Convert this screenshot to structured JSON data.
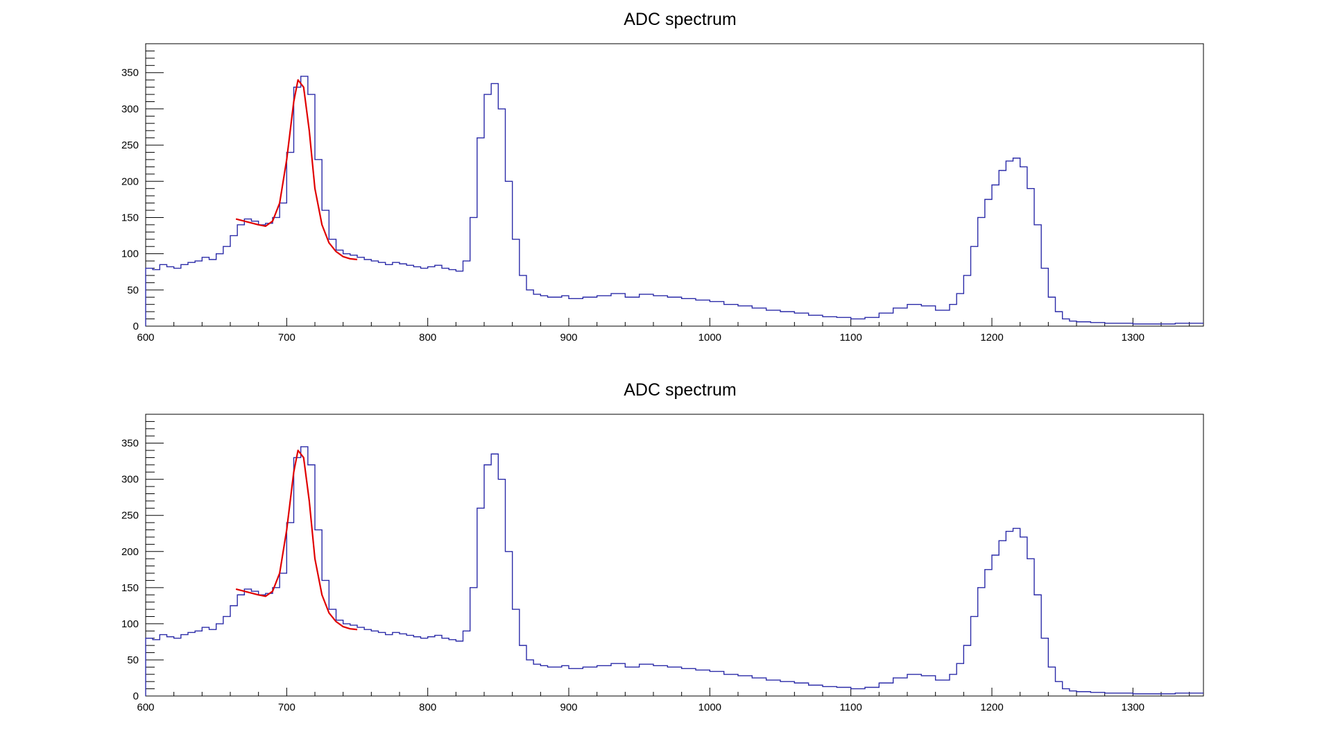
{
  "chart_data": [
    {
      "type": "histogram",
      "title": "ADC spectrum",
      "xlim": [
        600,
        1350
      ],
      "ylim": [
        0,
        390
      ],
      "x_ticks": [
        600,
        700,
        800,
        900,
        1000,
        1100,
        1200,
        1300
      ],
      "y_ticks": [
        0,
        50,
        100,
        150,
        200,
        250,
        300,
        350
      ],
      "series_color": "#2b2ba8",
      "fit_color": "#e00000",
      "histogram_x": [
        600,
        605,
        610,
        615,
        620,
        625,
        630,
        635,
        640,
        645,
        650,
        655,
        660,
        665,
        670,
        675,
        680,
        685,
        690,
        695,
        700,
        705,
        710,
        715,
        720,
        725,
        730,
        735,
        740,
        745,
        750,
        755,
        760,
        765,
        770,
        775,
        780,
        785,
        790,
        795,
        800,
        805,
        810,
        815,
        820,
        825,
        830,
        835,
        840,
        845,
        850,
        855,
        860,
        865,
        870,
        875,
        880,
        885,
        890,
        895,
        900,
        910,
        920,
        930,
        940,
        950,
        960,
        970,
        980,
        990,
        1000,
        1010,
        1020,
        1030,
        1040,
        1050,
        1060,
        1070,
        1080,
        1090,
        1100,
        1110,
        1120,
        1130,
        1140,
        1150,
        1160,
        1170,
        1175,
        1180,
        1185,
        1190,
        1195,
        1200,
        1205,
        1210,
        1215,
        1220,
        1225,
        1230,
        1235,
        1240,
        1245,
        1250,
        1255,
        1260,
        1270,
        1280,
        1290,
        1300,
        1310,
        1320,
        1330,
        1340,
        1350
      ],
      "histogram_y": [
        80,
        78,
        85,
        82,
        80,
        85,
        88,
        90,
        95,
        92,
        100,
        110,
        125,
        140,
        148,
        145,
        140,
        142,
        150,
        170,
        240,
        330,
        345,
        320,
        230,
        160,
        120,
        105,
        100,
        98,
        95,
        92,
        90,
        88,
        85,
        88,
        86,
        84,
        82,
        80,
        82,
        84,
        80,
        78,
        76,
        90,
        150,
        260,
        320,
        335,
        300,
        200,
        120,
        70,
        50,
        44,
        42,
        40,
        40,
        42,
        38,
        40,
        42,
        45,
        40,
        44,
        42,
        40,
        38,
        36,
        34,
        30,
        28,
        25,
        22,
        20,
        18,
        15,
        13,
        12,
        10,
        12,
        18,
        25,
        30,
        28,
        22,
        30,
        45,
        70,
        110,
        150,
        175,
        195,
        215,
        228,
        232,
        220,
        190,
        140,
        80,
        40,
        20,
        10,
        7,
        6,
        5,
        4,
        4,
        3,
        3,
        3,
        4,
        4,
        5
      ],
      "fit_x": [
        664,
        670,
        680,
        685,
        690,
        695,
        700,
        705,
        708,
        712,
        716,
        720,
        725,
        730,
        735,
        740,
        745,
        750
      ],
      "fit_y": [
        148,
        145,
        140,
        138,
        145,
        170,
        230,
        310,
        340,
        330,
        270,
        190,
        140,
        115,
        103,
        96,
        93,
        92
      ]
    },
    {
      "type": "histogram",
      "title": "ADC spectrum",
      "xlim": [
        600,
        1350
      ],
      "ylim": [
        0,
        390
      ],
      "x_ticks": [
        600,
        700,
        800,
        900,
        1000,
        1100,
        1200,
        1300
      ],
      "y_ticks": [
        0,
        50,
        100,
        150,
        200,
        250,
        300,
        350
      ],
      "series_color": "#2b2ba8",
      "fit_color": "#e00000",
      "histogram_x": [
        600,
        605,
        610,
        615,
        620,
        625,
        630,
        635,
        640,
        645,
        650,
        655,
        660,
        665,
        670,
        675,
        680,
        685,
        690,
        695,
        700,
        705,
        710,
        715,
        720,
        725,
        730,
        735,
        740,
        745,
        750,
        755,
        760,
        765,
        770,
        775,
        780,
        785,
        790,
        795,
        800,
        805,
        810,
        815,
        820,
        825,
        830,
        835,
        840,
        845,
        850,
        855,
        860,
        865,
        870,
        875,
        880,
        885,
        890,
        895,
        900,
        910,
        920,
        930,
        940,
        950,
        960,
        970,
        980,
        990,
        1000,
        1010,
        1020,
        1030,
        1040,
        1050,
        1060,
        1070,
        1080,
        1090,
        1100,
        1110,
        1120,
        1130,
        1140,
        1150,
        1160,
        1170,
        1175,
        1180,
        1185,
        1190,
        1195,
        1200,
        1205,
        1210,
        1215,
        1220,
        1225,
        1230,
        1235,
        1240,
        1245,
        1250,
        1255,
        1260,
        1270,
        1280,
        1290,
        1300,
        1310,
        1320,
        1330,
        1340,
        1350
      ],
      "histogram_y": [
        80,
        78,
        85,
        82,
        80,
        85,
        88,
        90,
        95,
        92,
        100,
        110,
        125,
        140,
        148,
        145,
        140,
        142,
        150,
        170,
        240,
        330,
        345,
        320,
        230,
        160,
        120,
        105,
        100,
        98,
        95,
        92,
        90,
        88,
        85,
        88,
        86,
        84,
        82,
        80,
        82,
        84,
        80,
        78,
        76,
        90,
        150,
        260,
        320,
        335,
        300,
        200,
        120,
        70,
        50,
        44,
        42,
        40,
        40,
        42,
        38,
        40,
        42,
        45,
        40,
        44,
        42,
        40,
        38,
        36,
        34,
        30,
        28,
        25,
        22,
        20,
        18,
        15,
        13,
        12,
        10,
        12,
        18,
        25,
        30,
        28,
        22,
        30,
        45,
        70,
        110,
        150,
        175,
        195,
        215,
        228,
        232,
        220,
        190,
        140,
        80,
        40,
        20,
        10,
        7,
        6,
        5,
        4,
        4,
        3,
        3,
        3,
        4,
        4,
        5
      ],
      "fit_x": [
        664,
        670,
        680,
        685,
        690,
        695,
        700,
        705,
        708,
        712,
        716,
        720,
        725,
        730,
        735,
        740,
        745,
        750
      ],
      "fit_y": [
        148,
        145,
        140,
        138,
        145,
        170,
        230,
        310,
        340,
        330,
        270,
        190,
        140,
        115,
        103,
        96,
        93,
        92
      ]
    }
  ]
}
